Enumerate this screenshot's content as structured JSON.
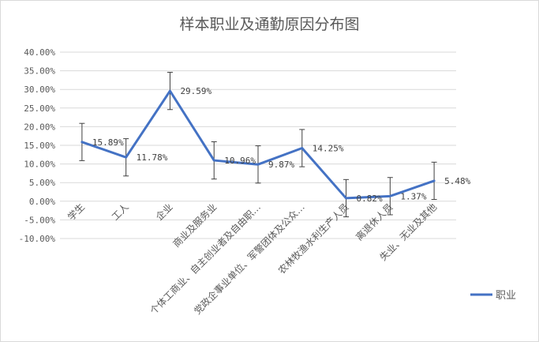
{
  "chart_data": {
    "type": "line",
    "title": "样本职业及通勤原因分布图",
    "categories": [
      "学生",
      "工人",
      "企业",
      "商业及服务业",
      "个体工商业、自主创业者及自由职…",
      "党政企事业单位、军警团体及公众…",
      "农林牧渔水利生产人员",
      "离退休人员",
      "失业、无业及其他"
    ],
    "series": [
      {
        "name": "职业",
        "values": [
          15.89,
          11.78,
          29.59,
          10.96,
          9.87,
          14.25,
          0.82,
          1.37,
          5.48
        ],
        "labels": [
          "15.89%",
          "11.78%",
          "29.59%",
          "10.96%",
          "9.87%",
          "14.25%",
          "0.82%",
          "1.37%",
          "5.48%"
        ],
        "color": "#4472c4",
        "error": 5
      }
    ],
    "ylim": [
      -10,
      40
    ],
    "yticks": [
      "-10.00%",
      "-5.00%",
      "0.00%",
      "5.00%",
      "10.00%",
      "15.00%",
      "20.00%",
      "25.00%",
      "30.00%",
      "35.00%",
      "40.00%"
    ],
    "ytick_values": [
      -10,
      -5,
      0,
      5,
      10,
      15,
      20,
      25,
      30,
      35,
      40
    ],
    "grid": true,
    "legend_position": "bottom-right",
    "xlabel": "",
    "ylabel": ""
  }
}
